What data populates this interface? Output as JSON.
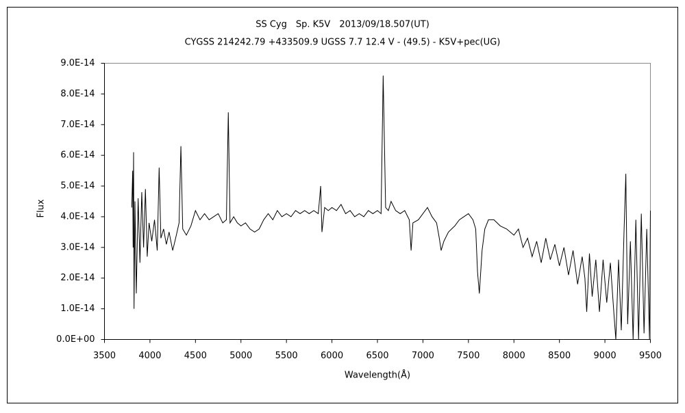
{
  "chart_data": {
    "type": "line",
    "title": "SS Cyg　Sp. K5V　2013/09/18.507(UT)",
    "subtitle": "CYGSS 214242.79 +433509.9 UGSS 7.7 12.4 V - (49.5) - K5V+pec(UG)",
    "x_label": "Wavelength(Å)",
    "y_label": "Flux",
    "xlim": [
      3500,
      9500
    ],
    "ylim": [
      0,
      9e-14
    ],
    "xticks": [
      3500,
      4000,
      4500,
      5000,
      5500,
      6000,
      6500,
      7000,
      7500,
      8000,
      8500,
      9000,
      9500
    ],
    "yticks": [
      {
        "value": 0,
        "label": "0.0E+00"
      },
      {
        "value": 1e-14,
        "label": "1.0E-14"
      },
      {
        "value": 2e-14,
        "label": "2.0E-14"
      },
      {
        "value": 3e-14,
        "label": "3.0E-14"
      },
      {
        "value": 4e-14,
        "label": "4.0E-14"
      },
      {
        "value": 5e-14,
        "label": "5.0E-14"
      },
      {
        "value": 6e-14,
        "label": "6.0E-14"
      },
      {
        "value": 7e-14,
        "label": "7.0E-14"
      },
      {
        "value": 8e-14,
        "label": "8.0E-14"
      },
      {
        "value": 9e-14,
        "label": "9.0E-14"
      }
    ],
    "grid": false,
    "color": "#000000",
    "x": [
      3800,
      3810,
      3815,
      3820,
      3825,
      3835,
      3850,
      3870,
      3890,
      3910,
      3930,
      3950,
      3970,
      3990,
      4020,
      4050,
      4080,
      4101,
      4120,
      4150,
      4180,
      4210,
      4250,
      4290,
      4320,
      4340,
      4360,
      4400,
      4450,
      4500,
      4550,
      4600,
      4650,
      4700,
      4750,
      4800,
      4840,
      4861,
      4880,
      4920,
      4960,
      5000,
      5050,
      5100,
      5150,
      5200,
      5250,
      5300,
      5350,
      5400,
      5450,
      5500,
      5550,
      5600,
      5650,
      5700,
      5750,
      5800,
      5850,
      5876,
      5890,
      5920,
      5960,
      6000,
      6050,
      6100,
      6150,
      6200,
      6250,
      6300,
      6350,
      6400,
      6450,
      6500,
      6540,
      6563,
      6590,
      6620,
      6650,
      6700,
      6750,
      6800,
      6850,
      6870,
      6890,
      6950,
      7000,
      7050,
      7100,
      7150,
      7180,
      7200,
      7230,
      7280,
      7350,
      7400,
      7450,
      7500,
      7550,
      7580,
      7600,
      7620,
      7650,
      7680,
      7720,
      7780,
      7850,
      7920,
      8000,
      8050,
      8100,
      8150,
      8200,
      8250,
      8300,
      8350,
      8400,
      8450,
      8500,
      8550,
      8600,
      8650,
      8700,
      8750,
      8780,
      8800,
      8830,
      8860,
      8900,
      8940,
      8980,
      9020,
      9060,
      9100,
      9120,
      9150,
      9180,
      9210,
      9230,
      9250,
      9280,
      9310,
      9340,
      9370,
      9400,
      9430,
      9460,
      9490,
      9500
    ],
    "values": [
      4.3e-14,
      5.5e-14,
      3e-14,
      6.1e-14,
      1e-14,
      4.5e-14,
      1.5e-14,
      4.6e-14,
      2.5e-14,
      4.8e-14,
      3e-14,
      4.9e-14,
      2.7e-14,
      3.8e-14,
      3.2e-14,
      3.9e-14,
      2.9e-14,
      5.6e-14,
      3.3e-14,
      3.6e-14,
      3.1e-14,
      3.5e-14,
      2.9e-14,
      3.4e-14,
      3.8e-14,
      6.3e-14,
      3.6e-14,
      3.4e-14,
      3.7e-14,
      4.2e-14,
      3.9e-14,
      4.1e-14,
      3.9e-14,
      4e-14,
      4.1e-14,
      3.8e-14,
      3.9e-14,
      7.4e-14,
      3.8e-14,
      4e-14,
      3.8e-14,
      3.7e-14,
      3.8e-14,
      3.6e-14,
      3.5e-14,
      3.6e-14,
      3.9e-14,
      4.1e-14,
      3.9e-14,
      4.2e-14,
      4e-14,
      4.1e-14,
      4e-14,
      4.2e-14,
      4.1e-14,
      4.2e-14,
      4.1e-14,
      4.2e-14,
      4.1e-14,
      5e-14,
      3.5e-14,
      4.3e-14,
      4.2e-14,
      4.3e-14,
      4.2e-14,
      4.4e-14,
      4.1e-14,
      4.2e-14,
      4e-14,
      4.1e-14,
      4e-14,
      4.2e-14,
      4.1e-14,
      4.2e-14,
      4.1e-14,
      8.6e-14,
      4.3e-14,
      4.2e-14,
      4.5e-14,
      4.2e-14,
      4.1e-14,
      4.2e-14,
      3.9e-14,
      2.9e-14,
      3.8e-14,
      3.9e-14,
      4.1e-14,
      4.3e-14,
      4e-14,
      3.8e-14,
      3.3e-14,
      2.9e-14,
      3.2e-14,
      3.5e-14,
      3.7e-14,
      3.9e-14,
      4e-14,
      4.1e-14,
      3.9e-14,
      3.6e-14,
      2.2e-14,
      1.5e-14,
      2.9e-14,
      3.6e-14,
      3.9e-14,
      3.9e-14,
      3.7e-14,
      3.6e-14,
      3.4e-14,
      3.6e-14,
      3e-14,
      3.3e-14,
      2.7e-14,
      3.2e-14,
      2.5e-14,
      3.3e-14,
      2.6e-14,
      3.1e-14,
      2.4e-14,
      3e-14,
      2.1e-14,
      2.9e-14,
      1.8e-14,
      2.7e-14,
      2e-14,
      9e-15,
      2.8e-14,
      1.4e-14,
      2.6e-14,
      9e-15,
      2.6e-14,
      1.2e-14,
      2.5e-14,
      8e-15,
      0,
      2.6e-14,
      3e-15,
      3.5e-14,
      5.4e-14,
      5e-15,
      3.2e-14,
      0,
      3.9e-14,
      0,
      4.1e-14,
      2e-15,
      3.6e-14,
      0,
      4.2e-14
    ]
  }
}
